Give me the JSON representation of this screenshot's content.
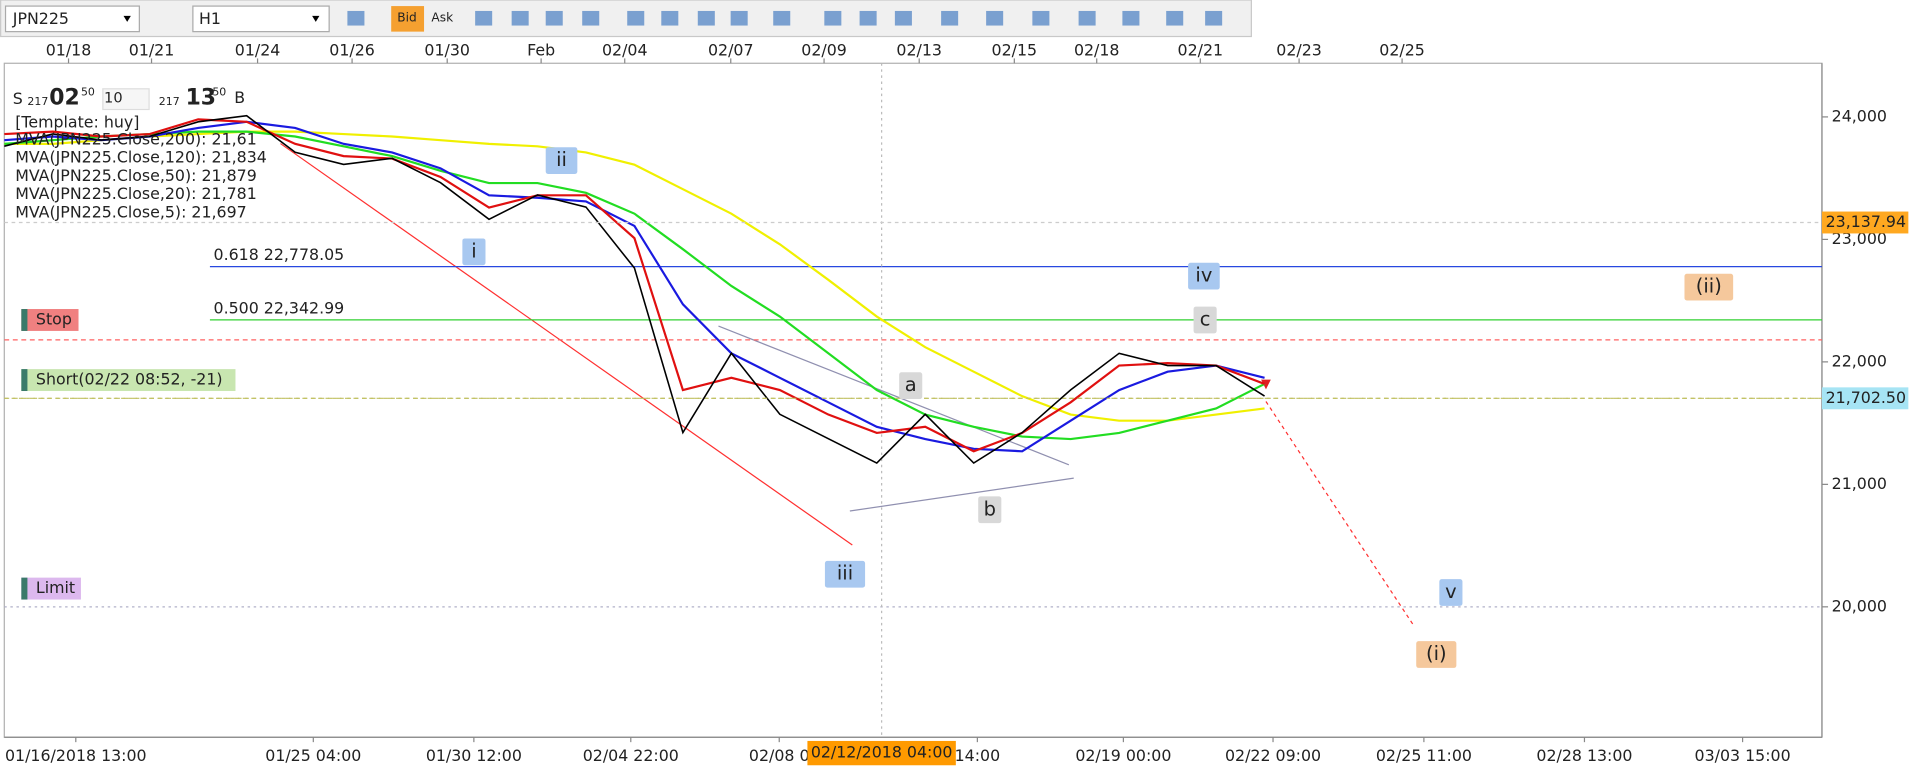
{
  "toolbar": {
    "symbol": "JPN225",
    "period": "H1",
    "bid": "Bid",
    "ask": "Ask"
  },
  "quote": {
    "side": "S",
    "spread": "217",
    "price": "02",
    "small": "50",
    "qty": "10",
    "spread2": "217",
    "price2": "13",
    "small2": "50",
    "side2": "B"
  },
  "template": "[Template: huy]",
  "chart_data": {
    "type": "line",
    "x": [
      0,
      8,
      16,
      24,
      32,
      40,
      48,
      56,
      64,
      72,
      80,
      88,
      96,
      104,
      112,
      120,
      128,
      136,
      144,
      152,
      160,
      168,
      176,
      184,
      192,
      200,
      208
    ],
    "xlim": [
      0,
      300
    ],
    "xticks": [
      {
        "value": 11.8,
        "label": "01/16/2018 13:00"
      },
      {
        "value": 51,
        "label": "01/25 04:00"
      },
      {
        "value": 77.5,
        "label": "01/30 12:00"
      },
      {
        "value": 103.4,
        "label": "02/04 22:00"
      },
      {
        "value": 127.9,
        "label": "02/08 0"
      },
      {
        "value": 160.6,
        "label": "14:00"
      },
      {
        "value": 184.7,
        "label": "02/19 00:00"
      },
      {
        "value": 209.4,
        "label": "02/22 09:00"
      },
      {
        "value": 234.3,
        "label": "02/25 11:00"
      },
      {
        "value": 260.8,
        "label": "02/28 13:00"
      },
      {
        "value": 286.9,
        "label": "03/03 15:00"
      }
    ],
    "x2ticks": [
      {
        "value": 10.6,
        "label": "01/18"
      },
      {
        "value": 24.3,
        "label": "01/21"
      },
      {
        "value": 41.8,
        "label": "01/24"
      },
      {
        "value": 57.4,
        "label": "01/26"
      },
      {
        "value": 73.1,
        "label": "01/30"
      },
      {
        "value": 88.6,
        "label": "Feb"
      },
      {
        "value": 102.4,
        "label": "02/04"
      },
      {
        "value": 119.9,
        "label": "02/07"
      },
      {
        "value": 135.3,
        "label": "02/09"
      },
      {
        "value": 151,
        "label": "02/13"
      },
      {
        "value": 166.7,
        "label": "02/15"
      },
      {
        "value": 180.3,
        "label": "02/18"
      },
      {
        "value": 197.4,
        "label": "02/21"
      },
      {
        "value": 213.7,
        "label": "02/23"
      },
      {
        "value": 230.7,
        "label": "02/25"
      }
    ],
    "cursor": {
      "value": 144.8,
      "label": "02/12/2018 04:00"
    },
    "ylim": [
      18935,
      24438
    ],
    "yticks": [
      {
        "value": 20000,
        "label": "20,000"
      },
      {
        "value": 21000,
        "label": "21,000"
      },
      {
        "value": 22000,
        "label": "22,000"
      },
      {
        "value": 23000,
        "label": "23,000"
      },
      {
        "value": 24000,
        "label": "24,000"
      }
    ],
    "series": [
      {
        "name": "MVA(JPN225.Close,200): 21,61",
        "color": "#f0f000",
        "values": [
          23780,
          23780,
          23810,
          23840,
          23860,
          23880,
          23880,
          23860,
          23840,
          23810,
          23780,
          23760,
          23710,
          23610,
          23410,
          23210,
          22960,
          22670,
          22370,
          22120,
          21920,
          21720,
          21570,
          21520,
          21520,
          21570,
          21620
        ]
      },
      {
        "name": "MVA(JPN225.Close,120): 21,834",
        "color": "#22dd22",
        "values": [
          23780,
          23810,
          23840,
          23860,
          23880,
          23880,
          23840,
          23760,
          23680,
          23560,
          23460,
          23460,
          23380,
          23210,
          22920,
          22620,
          22370,
          22070,
          21770,
          21570,
          21470,
          21390,
          21370,
          21420,
          21520,
          21620,
          21820
        ]
      },
      {
        "name": "MVA(JPN225.Close,50): 21,879",
        "color": "#1a1ae0",
        "values": [
          23810,
          23840,
          23810,
          23840,
          23910,
          23960,
          23910,
          23780,
          23710,
          23580,
          23360,
          23340,
          23310,
          23110,
          22470,
          22070,
          21870,
          21670,
          21470,
          21370,
          21290,
          21270,
          21520,
          21770,
          21920,
          21970,
          21870
        ]
      },
      {
        "name": "MVA(JPN225.Close,20): 21,781",
        "color": "#e01010",
        "values": [
          23860,
          23880,
          23840,
          23860,
          23980,
          23960,
          23780,
          23680,
          23660,
          23510,
          23260,
          23360,
          23360,
          23010,
          21770,
          21870,
          21770,
          21570,
          21420,
          21470,
          21270,
          21420,
          21670,
          21970,
          21990,
          21970,
          21820
        ]
      },
      {
        "name": "MVA(JPN225.Close,5): 21,697",
        "color": "#000000",
        "values": [
          23761,
          23861,
          23811,
          23841,
          23960,
          24010,
          23711,
          23612,
          23662,
          23463,
          23164,
          23363,
          23264,
          22766,
          21423,
          22070,
          21572,
          21373,
          21174,
          21572,
          21174,
          21423,
          21771,
          22070,
          21970,
          21970,
          21721
        ]
      }
    ],
    "fib": [
      {
        "label": "0.618 22,778.05",
        "value": 22778.05,
        "color": "#2848e0"
      },
      {
        "label": "0.500 22,342.99",
        "value": 22342.99,
        "color": "#30d030"
      }
    ],
    "orders": [
      {
        "label": "Stop",
        "value": 22180,
        "color": "#f08080",
        "line": "#ff6060"
      },
      {
        "label": "Short(02/22 08:52, -21)",
        "value": 21702.5,
        "color": "#c8e6b0",
        "line": "#c0c060"
      },
      {
        "label": "Limit",
        "value": 20000,
        "color": "#dcb8ee",
        "line": "#b0b0c8"
      }
    ],
    "price_tags": [
      {
        "value": 23137.94,
        "label": "23,137.94",
        "color": "#ffa820"
      },
      {
        "value": 21702.5,
        "label": "21,702.50",
        "color": "#a6e4f4"
      }
    ],
    "waves": [
      {
        "text": "i",
        "color": "#a8c8f0"
      },
      {
        "text": "ii",
        "color": "#a8c8f0"
      },
      {
        "text": "iii",
        "color": "#a8c8f0"
      },
      {
        "text": "iv",
        "color": "#a8c8f0"
      },
      {
        "text": "v",
        "color": "#a8c8f0"
      },
      {
        "text": "a",
        "color": "#d8d8d8"
      },
      {
        "text": "b",
        "color": "#d8d8d8"
      },
      {
        "text": "c",
        "color": "#d8d8d8"
      },
      {
        "text": "(i)",
        "color": "#f5c89c"
      },
      {
        "text": "(ii)",
        "color": "#f5c89c"
      }
    ]
  }
}
